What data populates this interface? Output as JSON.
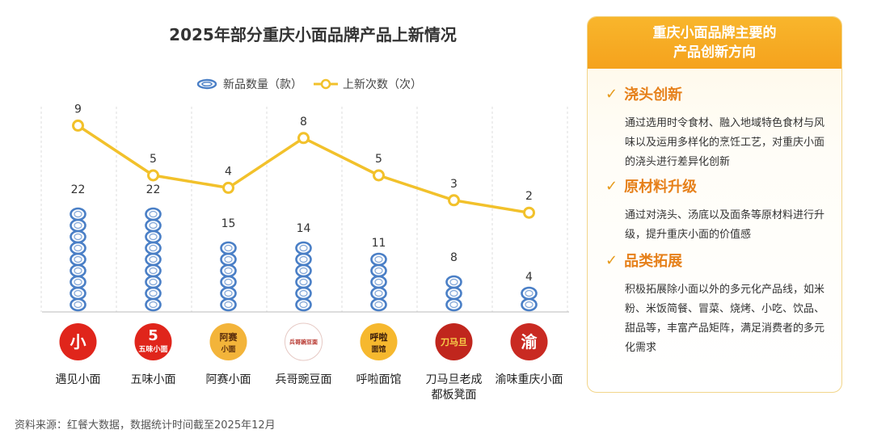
{
  "chart_data": {
    "type": "bar+line",
    "title": "2025年部分重庆小面品牌产品上新情况",
    "categories": [
      "遇见小面",
      "五味小面",
      "阿赛小面",
      "兵哥豌豆面",
      "呼啦面馆",
      "刀马旦老成都板凳面",
      "渝味重庆小面"
    ],
    "category_lines": [
      [
        "遇见小面"
      ],
      [
        "五味小面"
      ],
      [
        "阿赛小面"
      ],
      [
        "兵哥豌豆面"
      ],
      [
        "呼啦面馆"
      ],
      [
        "刀马旦老成",
        "都板凳面"
      ],
      [
        "渝味重庆小面"
      ]
    ],
    "series": [
      {
        "name": "新品数量（款）",
        "type": "bar",
        "values": [
          22,
          22,
          15,
          14,
          11,
          8,
          4
        ]
      },
      {
        "name": "上新次数（次）",
        "type": "line",
        "values": [
          9,
          5,
          4,
          8,
          5,
          3,
          2
        ]
      }
    ],
    "legend_position": "top-center",
    "grid": false
  },
  "logos": [
    {
      "text": "小",
      "bg": "#e0251b",
      "fg": "#ffffff"
    },
    {
      "text": "5",
      "sub": "五味小面",
      "bg": "#e0251b",
      "fg": "#ffffff"
    },
    {
      "text": "阿赛",
      "sub": "小面",
      "bg": "#f3b43a",
      "fg": "#5a2d0c"
    },
    {
      "text": "兵哥豌豆面",
      "bg": "#ffffff",
      "fg": "#b5322a"
    },
    {
      "text": "呼啦",
      "sub": "面馆",
      "bg": "#f6b82e",
      "fg": "#3a1c0c"
    },
    {
      "text": "刀马旦",
      "bg": "#c0261d",
      "fg": "#f8d24a"
    },
    {
      "text": "渝",
      "bg": "#c92a22",
      "fg": "#ffffff"
    }
  ],
  "colors": {
    "bar": "#4a7fc6",
    "line": "#f2c12b",
    "accent": "#f5a21d"
  },
  "panel": {
    "title_line1": "重庆小面品牌主要的",
    "title_line2": "产品创新方向",
    "sections": [
      {
        "title": "浇头创新",
        "body": "通过选用时令食材、融入地域特色食材与风味以及运用多样化的烹饪工艺，对重庆小面的浇头进行差异化创新"
      },
      {
        "title": "原材料升级",
        "body": "通过对浇头、汤底以及面条等原材料进行升级，提升重庆小面的价值感"
      },
      {
        "title": "品类拓展",
        "body": "积极拓展除小面以外的多元化产品线，如米粉、米饭简餐、冒菜、烧烤、小吃、饮品、甜品等，丰富产品矩阵，满足消费者的多元化需求"
      }
    ]
  },
  "source": "资料来源：红餐大数据，数据统计时间截至2025年12月"
}
